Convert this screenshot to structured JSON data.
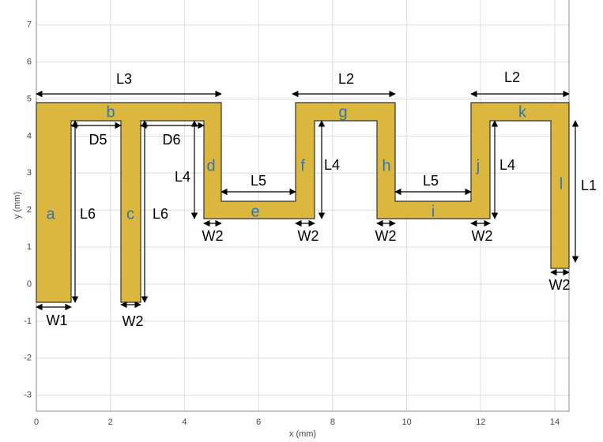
{
  "axes": {
    "x_label": "x (mm)",
    "y_label": "y (mm)",
    "xticks": [
      0,
      2,
      4,
      6,
      8,
      10,
      12,
      14
    ],
    "yticks": [
      -3,
      -2,
      -1,
      0,
      1,
      2,
      3,
      4,
      5,
      6,
      7
    ]
  },
  "dimension_labels": [
    "L3",
    "L2",
    "L2",
    "D5",
    "D6",
    "L4",
    "L5",
    "L4",
    "L5",
    "L4",
    "L1",
    "L6",
    "L6",
    "W2",
    "W2",
    "W2",
    "W2",
    "W2",
    "W1",
    "W2"
  ],
  "segment_labels": [
    "a",
    "b",
    "c",
    "d",
    "e",
    "f",
    "g",
    "h",
    "i",
    "j",
    "k",
    "l"
  ]
}
